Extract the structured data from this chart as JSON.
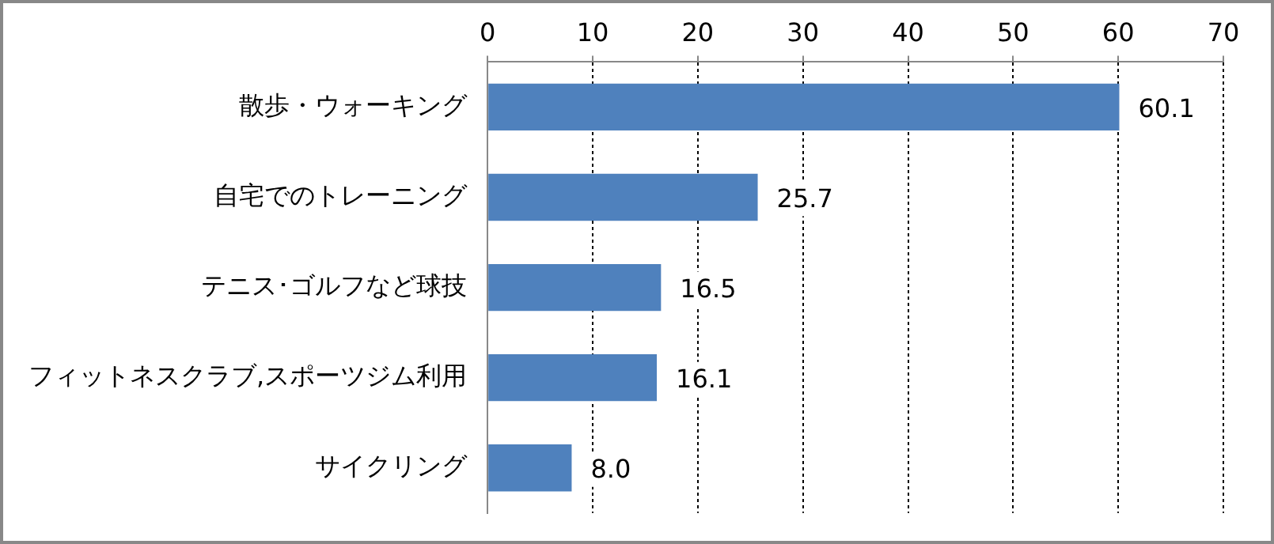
{
  "chart_data": {
    "type": "bar",
    "orientation": "horizontal",
    "categories": [
      "散歩・ウォーキング",
      "自宅でのトレーニング",
      "テニス･ゴルフなど球技",
      "フィットネスクラブ,スポーツジム利用",
      "サイクリング"
    ],
    "values": [
      60.1,
      25.7,
      16.5,
      16.1,
      8.0
    ],
    "value_labels": [
      "60.1",
      "25.7",
      "16.5",
      "16.1",
      "8.0"
    ],
    "color": "#4f81bd",
    "xlim": [
      0,
      70
    ],
    "xticks": [
      0,
      10,
      20,
      30,
      40,
      50,
      60,
      70
    ],
    "grid": "x"
  }
}
